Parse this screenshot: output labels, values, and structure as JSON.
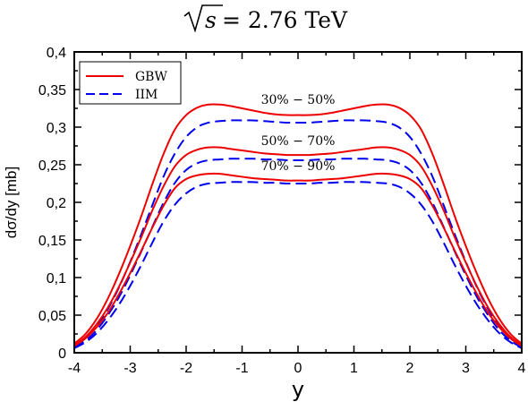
{
  "chart_data": {
    "type": "line",
    "title": "√s = 2.76 TeV",
    "title_parts": {
      "radicand": "s",
      "rest": " = 2.76 TeV"
    },
    "xlabel": "y",
    "ylabel": "dσ/dy [mb]",
    "xlim": [
      -4,
      4
    ],
    "ylim": [
      0,
      0.4
    ],
    "xticks": [
      -4,
      -3,
      -2,
      -1,
      0,
      1,
      2,
      3,
      4
    ],
    "xtick_labels": [
      "-4",
      "-3",
      "-2",
      "-1",
      "0",
      "1",
      "2",
      "3",
      "4"
    ],
    "yticks": [
      0,
      0.05,
      0.1,
      0.15,
      0.2,
      0.25,
      0.3,
      0.35,
      0.4
    ],
    "ytick_labels": [
      "0",
      "0,05",
      "0,1",
      "0,15",
      "0,2",
      "0,25",
      "0,3",
      "0,35",
      "0,4"
    ],
    "grid": false,
    "legend": {
      "position": "top-left",
      "entries": [
        "GBW",
        "IIM"
      ]
    },
    "annotations": [
      "30% − 50%",
      "50% − 70%",
      "70% − 90%"
    ],
    "colors": {
      "GBW": "#ee0000",
      "IIM": "#0000ee"
    },
    "x": [
      -4,
      -3.8,
      -3.6,
      -3.4,
      -3.2,
      -3,
      -2.8,
      -2.6,
      -2.4,
      -2.2,
      -2,
      -1.8,
      -1.6,
      -1.4,
      -1.2,
      -1,
      -0.8,
      -0.6,
      -0.4,
      -0.2,
      0,
      0.2,
      0.4,
      0.6,
      0.8,
      1,
      1.2,
      1.4,
      1.6,
      1.8,
      2,
      2.2,
      2.4,
      2.6,
      2.8,
      3,
      3.2,
      3.4,
      3.6,
      3.8,
      4
    ],
    "series": [
      {
        "name": "GBW",
        "style": "solid",
        "values": [
          0.012,
          0.025,
          0.045,
          0.072,
          0.105,
          0.142,
          0.182,
          0.225,
          0.265,
          0.297,
          0.316,
          0.326,
          0.33,
          0.33,
          0.328,
          0.325,
          0.322,
          0.319,
          0.317,
          0.316,
          0.316,
          0.316,
          0.317,
          0.319,
          0.322,
          0.325,
          0.328,
          0.33,
          0.33,
          0.326,
          0.316,
          0.297,
          0.265,
          0.225,
          0.182,
          0.142,
          0.105,
          0.072,
          0.045,
          0.025,
          0.012
        ]
      },
      {
        "name": "IIM",
        "style": "dashed",
        "values": [
          0.009,
          0.019,
          0.035,
          0.058,
          0.087,
          0.121,
          0.158,
          0.197,
          0.235,
          0.265,
          0.287,
          0.3,
          0.306,
          0.308,
          0.309,
          0.309,
          0.309,
          0.308,
          0.307,
          0.306,
          0.306,
          0.306,
          0.307,
          0.308,
          0.309,
          0.309,
          0.309,
          0.308,
          0.306,
          0.3,
          0.287,
          0.265,
          0.235,
          0.197,
          0.158,
          0.121,
          0.087,
          0.058,
          0.035,
          0.019,
          0.009
        ]
      },
      {
        "name": "GBW",
        "style": "solid",
        "values": [
          0.01,
          0.021,
          0.038,
          0.06,
          0.088,
          0.12,
          0.154,
          0.19,
          0.222,
          0.248,
          0.263,
          0.27,
          0.273,
          0.273,
          0.271,
          0.269,
          0.267,
          0.265,
          0.264,
          0.263,
          0.263,
          0.263,
          0.264,
          0.265,
          0.267,
          0.269,
          0.271,
          0.273,
          0.273,
          0.27,
          0.263,
          0.248,
          0.222,
          0.19,
          0.154,
          0.12,
          0.088,
          0.06,
          0.038,
          0.021,
          0.01
        ]
      },
      {
        "name": "IIM",
        "style": "dashed",
        "values": [
          0.007,
          0.016,
          0.03,
          0.05,
          0.074,
          0.103,
          0.135,
          0.168,
          0.2,
          0.226,
          0.243,
          0.252,
          0.256,
          0.257,
          0.258,
          0.258,
          0.258,
          0.257,
          0.257,
          0.256,
          0.256,
          0.256,
          0.257,
          0.257,
          0.258,
          0.258,
          0.258,
          0.257,
          0.256,
          0.252,
          0.243,
          0.226,
          0.2,
          0.168,
          0.135,
          0.103,
          0.074,
          0.05,
          0.03,
          0.016,
          0.007
        ]
      },
      {
        "name": "GBW",
        "style": "solid",
        "values": [
          0.009,
          0.019,
          0.034,
          0.053,
          0.078,
          0.106,
          0.136,
          0.167,
          0.196,
          0.219,
          0.231,
          0.236,
          0.238,
          0.238,
          0.236,
          0.234,
          0.232,
          0.231,
          0.23,
          0.229,
          0.229,
          0.229,
          0.23,
          0.231,
          0.232,
          0.234,
          0.236,
          0.238,
          0.238,
          0.236,
          0.231,
          0.219,
          0.196,
          0.167,
          0.136,
          0.106,
          0.078,
          0.053,
          0.034,
          0.019,
          0.009
        ]
      },
      {
        "name": "IIM",
        "style": "dashed",
        "values": [
          0.006,
          0.014,
          0.026,
          0.043,
          0.064,
          0.089,
          0.117,
          0.147,
          0.175,
          0.197,
          0.212,
          0.221,
          0.225,
          0.226,
          0.227,
          0.227,
          0.227,
          0.226,
          0.226,
          0.225,
          0.225,
          0.225,
          0.226,
          0.226,
          0.227,
          0.227,
          0.227,
          0.226,
          0.225,
          0.221,
          0.212,
          0.197,
          0.175,
          0.147,
          0.117,
          0.089,
          0.064,
          0.043,
          0.026,
          0.014,
          0.006
        ]
      }
    ]
  }
}
